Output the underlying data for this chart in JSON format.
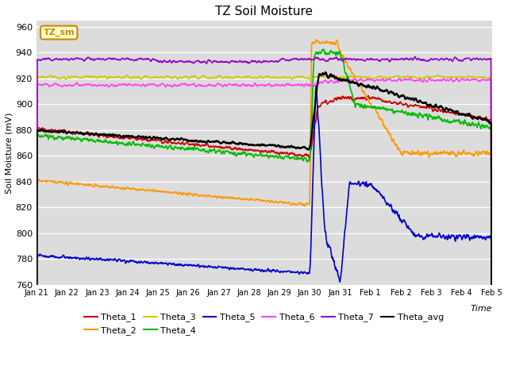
{
  "title": "TZ Soil Moisture",
  "xlabel": "Time",
  "ylabel": "Soil Moisture (mV)",
  "ylim": [
    760,
    965
  ],
  "yticks": [
    760,
    780,
    800,
    820,
    840,
    860,
    880,
    900,
    920,
    940,
    960
  ],
  "x_labels": [
    "Jan 21",
    "Jan 22",
    "Jan 23",
    "Jan 24",
    "Jan 25",
    "Jan 26",
    "Jan 27",
    "Jan 28",
    "Jan 29",
    "Jan 30",
    "Jan 31",
    "Feb 1",
    "Feb 2",
    "Feb 3",
    "Feb 4",
    "Feb 5"
  ],
  "num_days": 15,
  "bg_color": "#dcdcdc",
  "colors": {
    "Theta_1": "#cc0000",
    "Theta_2": "#ff9900",
    "Theta_3": "#cccc00",
    "Theta_4": "#00bb00",
    "Theta_5": "#0000cc",
    "Theta_6": "#ff44ff",
    "Theta_7": "#9900cc",
    "Theta_avg": "#000000"
  },
  "legend_label": "TZ_sm",
  "legend_label_color": "#cc8800",
  "legend_label_bg": "#ffffcc",
  "figsize": [
    6.4,
    4.8
  ],
  "dpi": 100
}
